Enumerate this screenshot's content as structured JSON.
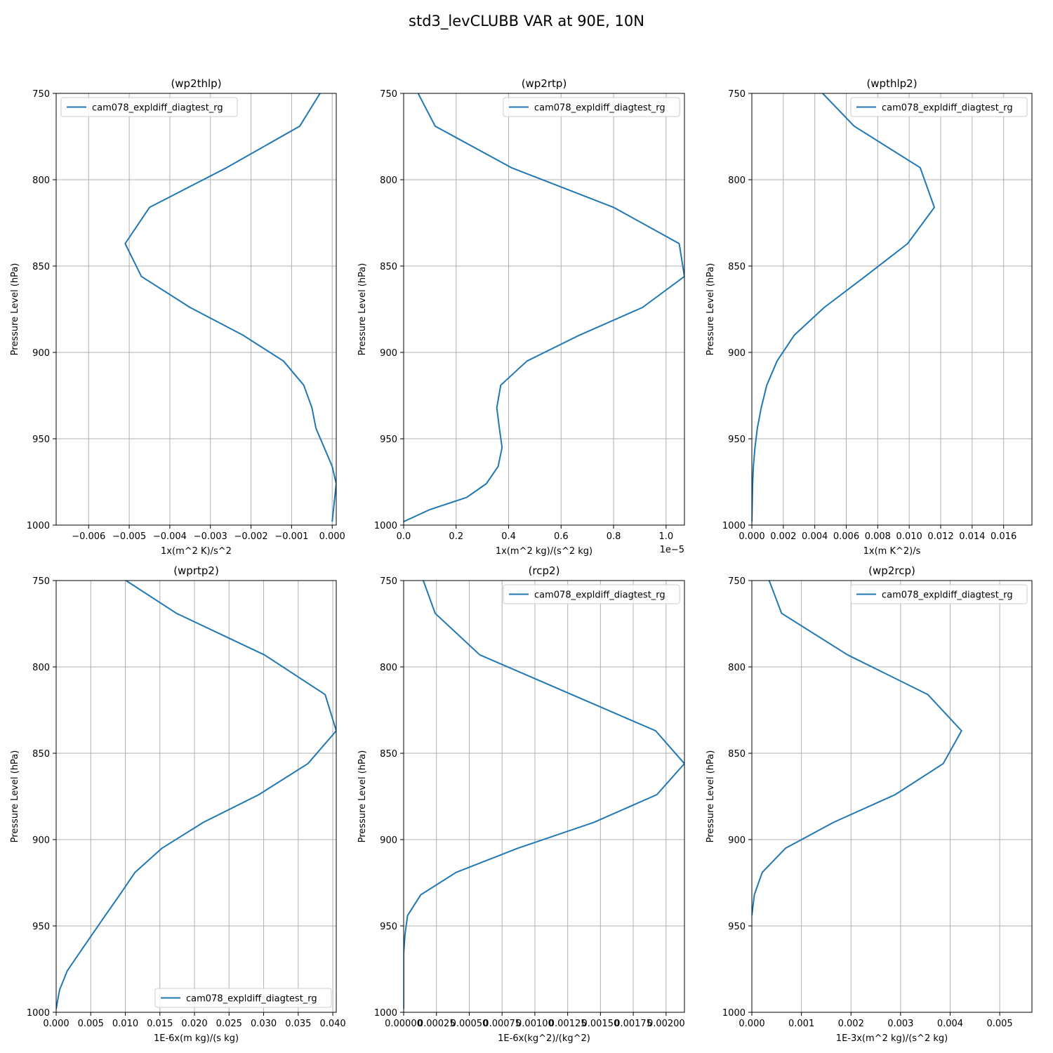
{
  "figure": {
    "title": "std3_levCLUBB VAR at 90E, 10N"
  },
  "chart_data": [
    {
      "type": "line",
      "title": "(wp2thlp)",
      "xlabel": "1x(m^2 K)/s^2",
      "ylabel": "Pressure Level (hPa)",
      "offset_text": "",
      "xlim": [
        -0.0068,
        0.0001
      ],
      "ylim": [
        1000,
        750
      ],
      "y_inverted": true,
      "xticks": [
        -0.006,
        -0.005,
        -0.004,
        -0.003,
        -0.002,
        -0.001,
        0.0
      ],
      "xtick_labels": [
        "−0.006",
        "−0.005",
        "−0.004",
        "−0.003",
        "−0.002",
        "−0.001",
        "0.000"
      ],
      "yticks": [
        750,
        800,
        850,
        900,
        950,
        1000
      ],
      "ytick_labels": [
        "750",
        "800",
        "850",
        "900",
        "950",
        "1000"
      ],
      "grid": true,
      "legend_position": "upper-left",
      "series": [
        {
          "name": "cam078_expldiff_diagtest_rg",
          "color": "#1f77b4",
          "x": [
            -0.0003,
            -0.0008,
            -0.0026,
            -0.0045,
            -0.0051,
            -0.0047,
            -0.0035,
            -0.0022,
            -0.0012,
            -0.0007,
            -0.0005,
            -0.0004,
            -0.0002,
            0.0,
            0.0001,
            0.0
          ],
          "y": [
            750,
            769,
            793,
            816,
            837,
            856,
            874,
            890,
            905,
            919,
            932,
            944,
            955,
            966,
            976,
            998
          ]
        }
      ]
    },
    {
      "type": "line",
      "title": "(wp2rtp)",
      "xlabel": "1x(m^2 kg)/(s^2 kg)",
      "ylabel": "Pressure Level (hPa)",
      "offset_text": "1e−5",
      "xlim": [
        0.0,
        1.07
      ],
      "ylim": [
        1000,
        750
      ],
      "y_inverted": true,
      "xticks": [
        0.0,
        0.2,
        0.4,
        0.6,
        0.8,
        1.0
      ],
      "xtick_labels": [
        "0.0",
        "0.2",
        "0.4",
        "0.6",
        "0.8",
        "1.0"
      ],
      "yticks": [
        750,
        800,
        850,
        900,
        950,
        1000
      ],
      "ytick_labels": [
        "750",
        "800",
        "850",
        "900",
        "950",
        "1000"
      ],
      "grid": true,
      "legend_position": "upper-right",
      "series": [
        {
          "name": "cam078_expldiff_diagtest_rg",
          "color": "#1f77b4",
          "x": [
            0.055,
            0.12,
            0.41,
            0.8,
            1.05,
            1.07,
            0.91,
            0.67,
            0.47,
            0.37,
            0.355,
            0.365,
            0.375,
            0.36,
            0.315,
            0.24,
            0.1,
            0.0
          ],
          "y": [
            750,
            769,
            793,
            816,
            837,
            856,
            874,
            890,
            905,
            919,
            932,
            944,
            955,
            966,
            976,
            984,
            991,
            998
          ]
        }
      ]
    },
    {
      "type": "line",
      "title": "(wpthlp2)",
      "xlabel": "1x(m K^2)/s",
      "ylabel": "Pressure Level (hPa)",
      "offset_text": "",
      "xlim": [
        0.0,
        0.0178
      ],
      "ylim": [
        1000,
        750
      ],
      "y_inverted": true,
      "xticks": [
        0.0,
        0.002,
        0.004,
        0.006,
        0.008,
        0.01,
        0.012,
        0.014,
        0.016
      ],
      "xtick_labels": [
        "0.000",
        "0.002",
        "0.004",
        "0.006",
        "0.008",
        "0.010",
        "0.012",
        "0.014",
        "0.016"
      ],
      "yticks": [
        750,
        800,
        850,
        900,
        950,
        1000
      ],
      "ytick_labels": [
        "750",
        "800",
        "850",
        "900",
        "950",
        "1000"
      ],
      "grid": true,
      "legend_position": "upper-right",
      "series": [
        {
          "name": "cam078_expldiff_diagtest_rg",
          "color": "#1f77b4",
          "x": [
            0.0045,
            0.0065,
            0.0107,
            0.0116,
            0.0099,
            0.0072,
            0.0046,
            0.0027,
            0.0016,
            0.00095,
            0.0006,
            0.00035,
            0.0002,
            0.0001,
            5e-05,
            0.0
          ],
          "y": [
            750,
            769,
            793,
            816,
            837,
            856,
            874,
            890,
            905,
            919,
            932,
            944,
            955,
            966,
            976,
            998
          ]
        }
      ]
    },
    {
      "type": "line",
      "title": "(wprtp2)",
      "xlabel": "1E-6x(m kg)/(s kg)",
      "ylabel": "Pressure Level (hPa)",
      "offset_text": "",
      "xlim": [
        0.0,
        0.0405
      ],
      "ylim": [
        1000,
        750
      ],
      "y_inverted": true,
      "xticks": [
        0.0,
        0.005,
        0.01,
        0.015,
        0.02,
        0.025,
        0.03,
        0.035,
        0.04
      ],
      "xtick_labels": [
        "0.000",
        "0.005",
        "0.010",
        "0.015",
        "0.020",
        "0.025",
        "0.030",
        "0.035",
        "0.040"
      ],
      "yticks": [
        750,
        800,
        850,
        900,
        950,
        1000
      ],
      "ytick_labels": [
        "750",
        "800",
        "850",
        "900",
        "950",
        "1000"
      ],
      "grid": true,
      "legend_position": "lower-right",
      "series": [
        {
          "name": "cam078_expldiff_diagtest_rg",
          "color": "#1f77b4",
          "x": [
            0.0101,
            0.0174,
            0.0301,
            0.0389,
            0.0405,
            0.0364,
            0.0293,
            0.0213,
            0.0153,
            0.0114,
            0.0092,
            0.0071,
            0.0052,
            0.0033,
            0.0016,
            0.0005,
            0.0
          ],
          "y": [
            750,
            769,
            793,
            816,
            837,
            856,
            874,
            890,
            905,
            919,
            932,
            944,
            955,
            966,
            976,
            987,
            998
          ]
        }
      ]
    },
    {
      "type": "line",
      "title": "(rcp2)",
      "xlabel": "1E-6x(kg^2)/(kg^2)",
      "ylabel": "Pressure Level (hPa)",
      "offset_text": "",
      "xlim": [
        0.0,
        0.00214
      ],
      "ylim": [
        1000,
        750
      ],
      "y_inverted": true,
      "xticks": [
        0.0,
        0.00025,
        0.0005,
        0.00075,
        0.001,
        0.00125,
        0.0015,
        0.00175,
        0.002
      ],
      "xtick_labels": [
        "0.00000",
        "0.00025",
        "0.00050",
        "0.00075",
        "0.00100",
        "0.00125",
        "0.00150",
        "0.00175",
        "0.00200"
      ],
      "yticks": [
        750,
        800,
        850,
        900,
        950,
        1000
      ],
      "ytick_labels": [
        "750",
        "800",
        "850",
        "900",
        "950",
        "1000"
      ],
      "grid": true,
      "legend_position": "upper-right",
      "series": [
        {
          "name": "cam078_expldiff_diagtest_rg",
          "color": "#1f77b4",
          "x": [
            0.00015,
            0.00024,
            0.00058,
            0.00192,
            0.00214,
            0.00193,
            0.00145,
            0.00087,
            0.0004,
            0.00013,
            3e-05,
            1e-05,
            0.0,
            0.0,
            0.0
          ],
          "y": [
            750,
            769,
            793,
            837,
            856,
            874,
            890,
            905,
            919,
            932,
            944,
            955,
            966,
            976,
            998
          ]
        }
      ]
    },
    {
      "type": "line",
      "title": "(wp2rcp)",
      "xlabel": "1E-3x(m^2 kg)/(s^2 kg)",
      "ylabel": "Pressure Level (hPa)",
      "offset_text": "",
      "xlim": [
        0.0,
        0.00565
      ],
      "ylim": [
        1000,
        750
      ],
      "y_inverted": true,
      "xticks": [
        0.0,
        0.001,
        0.002,
        0.003,
        0.004,
        0.005
      ],
      "xtick_labels": [
        "0.000",
        "0.001",
        "0.002",
        "0.003",
        "0.004",
        "0.005"
      ],
      "yticks": [
        750,
        800,
        850,
        900,
        950,
        1000
      ],
      "ytick_labels": [
        "750",
        "800",
        "850",
        "900",
        "950",
        "1000"
      ],
      "grid": true,
      "legend_position": "upper-right",
      "series": [
        {
          "name": "cam078_expldiff_diagtest_rg",
          "color": "#1f77b4",
          "x": [
            0.00035,
            0.0006,
            0.00193,
            0.00355,
            0.00423,
            0.00386,
            0.00289,
            0.00165,
            0.00068,
            0.00021,
            5e-05,
            0.0
          ],
          "y": [
            750,
            769,
            793,
            816,
            837,
            856,
            874,
            890,
            905,
            919,
            932,
            944
          ]
        }
      ]
    }
  ]
}
